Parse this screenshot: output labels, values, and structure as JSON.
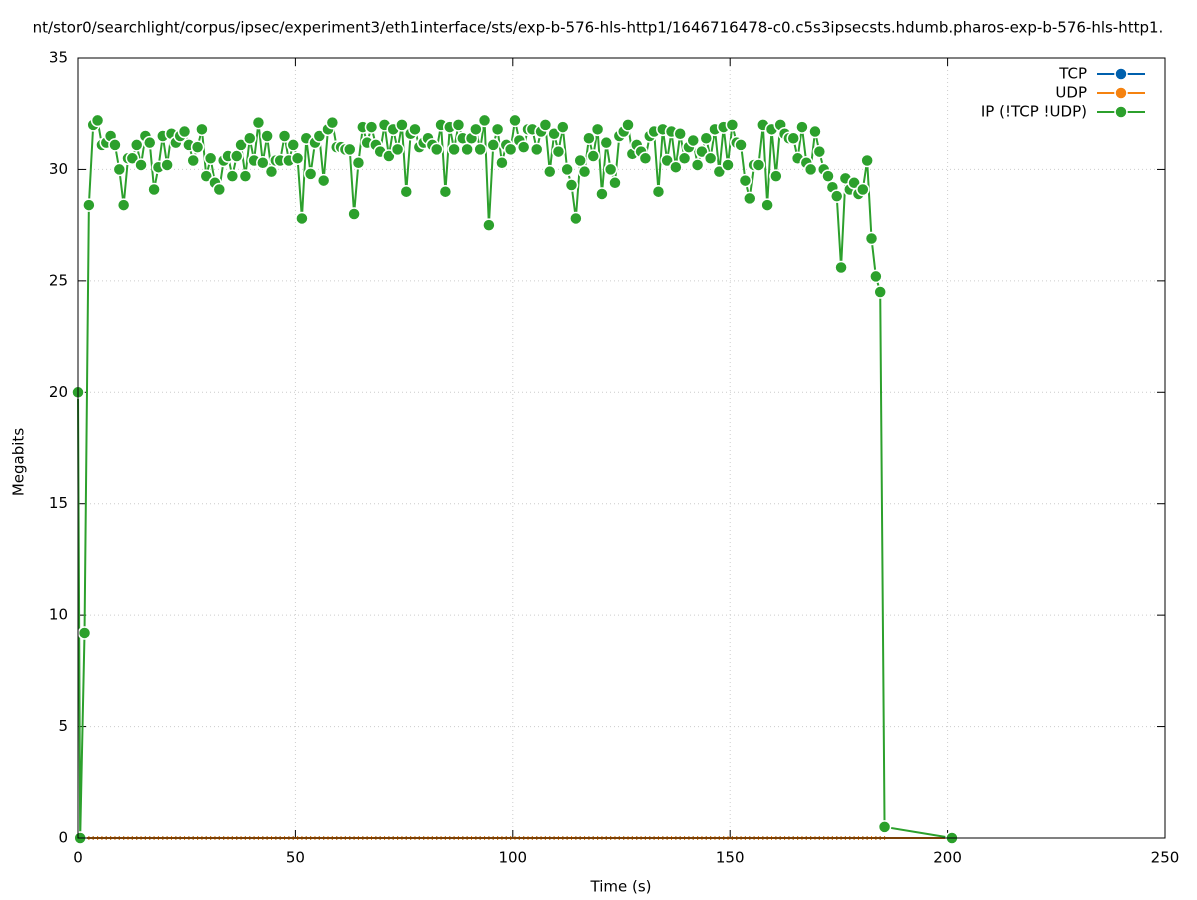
{
  "chart_data": {
    "type": "line",
    "title": "nt/stor0/searchlight/corpus/ipsec/experiment3/eth1interface/sts/exp-b-576-hls-http1/1646716478-c0.c5s3ipsecsts.hdumb.pharos-exp-b-576-hls-http1.",
    "x_label": "Time (s)",
    "y_label": "Megabits",
    "xlim": [
      0,
      250
    ],
    "xticks": [
      0,
      50,
      100,
      150,
      200,
      250
    ],
    "ylim": [
      0,
      35
    ],
    "yticks": [
      0,
      5,
      10,
      15,
      20,
      25,
      30,
      35
    ],
    "grid": true,
    "legend": "top-right",
    "x": [
      0,
      0.5,
      1.5,
      2.5,
      3.5,
      4.5,
      5.5,
      6.5,
      7.5,
      8.5,
      9.5,
      10.5,
      11.5,
      12.5,
      13.5,
      14.5,
      15.5,
      16.5,
      17.5,
      18.5,
      19.5,
      20.5,
      21.5,
      22.5,
      23.5,
      24.5,
      25.5,
      26.5,
      27.5,
      28.5,
      29.5,
      30.5,
      31.5,
      32.5,
      33.5,
      34.5,
      35.5,
      36.5,
      37.5,
      38.5,
      39.5,
      40.5,
      41.5,
      42.5,
      43.5,
      44.5,
      45.5,
      46.5,
      47.5,
      48.5,
      49.5,
      50.5,
      51.5,
      52.5,
      53.5,
      54.5,
      55.5,
      56.5,
      57.5,
      58.5,
      59.5,
      60.5,
      61.5,
      62.5,
      63.5,
      64.5,
      65.5,
      66.5,
      67.5,
      68.5,
      69.5,
      70.5,
      71.5,
      72.5,
      73.5,
      74.5,
      75.5,
      76.5,
      77.5,
      78.5,
      79.5,
      80.5,
      81.5,
      82.5,
      83.5,
      84.5,
      85.5,
      86.5,
      87.5,
      88.5,
      89.5,
      90.5,
      91.5,
      92.5,
      93.5,
      94.5,
      95.5,
      96.5,
      97.5,
      98.5,
      99.5,
      100.5,
      101.5,
      102.5,
      103.5,
      104.5,
      105.5,
      106.5,
      107.5,
      108.5,
      109.5,
      110.5,
      111.5,
      112.5,
      113.5,
      114.5,
      115.5,
      116.5,
      117.5,
      118.5,
      119.5,
      120.5,
      121.5,
      122.5,
      123.5,
      124.5,
      125.5,
      126.5,
      127.5,
      128.5,
      129.5,
      130.5,
      131.5,
      132.5,
      133.5,
      134.5,
      135.5,
      136.5,
      137.5,
      138.5,
      139.5,
      140.5,
      141.5,
      142.5,
      143.5,
      144.5,
      145.5,
      146.5,
      147.5,
      148.5,
      149.5,
      150.5,
      151.5,
      152.5,
      153.5,
      154.5,
      155.5,
      156.5,
      157.5,
      158.5,
      159.5,
      160.5,
      161.5,
      162.5,
      163.5,
      164.5,
      165.5,
      166.5,
      167.5,
      168.5,
      169.5,
      170.5,
      171.5,
      172.5,
      173.5,
      174.5,
      175.5,
      176.5,
      177.5,
      178.5,
      179.5,
      180.5,
      181.5,
      182.5,
      183.5,
      184.5,
      185.5,
      201
    ],
    "series": [
      {
        "name": "TCP",
        "color": "#0060ad",
        "values": [
          0,
          0,
          0,
          0,
          0,
          0,
          0,
          0,
          0,
          0,
          0,
          0,
          0,
          0,
          0,
          0,
          0,
          0,
          0,
          0,
          0,
          0,
          0,
          0,
          0,
          0,
          0,
          0,
          0,
          0,
          0,
          0,
          0,
          0,
          0,
          0,
          0,
          0,
          0,
          0,
          0,
          0,
          0,
          0,
          0,
          0,
          0,
          0,
          0,
          0,
          0,
          0,
          0,
          0,
          0,
          0,
          0,
          0,
          0,
          0,
          0,
          0,
          0,
          0,
          0,
          0,
          0,
          0,
          0,
          0,
          0,
          0,
          0,
          0,
          0,
          0,
          0,
          0,
          0,
          0,
          0,
          0,
          0,
          0,
          0,
          0,
          0,
          0,
          0,
          0,
          0,
          0,
          0,
          0,
          0,
          0,
          0,
          0,
          0,
          0,
          0,
          0,
          0,
          0,
          0,
          0,
          0,
          0,
          0,
          0,
          0,
          0,
          0,
          0,
          0,
          0,
          0,
          0,
          0,
          0,
          0,
          0,
          0,
          0,
          0,
          0,
          0,
          0,
          0,
          0,
          0,
          0,
          0,
          0,
          0,
          0,
          0,
          0,
          0,
          0,
          0,
          0,
          0,
          0,
          0,
          0,
          0,
          0,
          0,
          0,
          0,
          0,
          0,
          0,
          0,
          0,
          0,
          0,
          0,
          0,
          0,
          0,
          0,
          0,
          0,
          0,
          0,
          0,
          0,
          0,
          0,
          0,
          0,
          0,
          0,
          0,
          0,
          0,
          0,
          0,
          0,
          0,
          0,
          0,
          0,
          0,
          0,
          0
        ]
      },
      {
        "name": "UDP",
        "color": "#f5820f",
        "values": [
          0,
          0,
          0,
          0,
          0,
          0,
          0,
          0,
          0,
          0,
          0,
          0,
          0,
          0,
          0,
          0,
          0,
          0,
          0,
          0,
          0,
          0,
          0,
          0,
          0,
          0,
          0,
          0,
          0,
          0,
          0,
          0,
          0,
          0,
          0,
          0,
          0,
          0,
          0,
          0,
          0,
          0,
          0,
          0,
          0,
          0,
          0,
          0,
          0,
          0,
          0,
          0,
          0,
          0,
          0,
          0,
          0,
          0,
          0,
          0,
          0,
          0,
          0,
          0,
          0,
          0,
          0,
          0,
          0,
          0,
          0,
          0,
          0,
          0,
          0,
          0,
          0,
          0,
          0,
          0,
          0,
          0,
          0,
          0,
          0,
          0,
          0,
          0,
          0,
          0,
          0,
          0,
          0,
          0,
          0,
          0,
          0,
          0,
          0,
          0,
          0,
          0,
          0,
          0,
          0,
          0,
          0,
          0,
          0,
          0,
          0,
          0,
          0,
          0,
          0,
          0,
          0,
          0,
          0,
          0,
          0,
          0,
          0,
          0,
          0,
          0,
          0,
          0,
          0,
          0,
          0,
          0,
          0,
          0,
          0,
          0,
          0,
          0,
          0,
          0,
          0,
          0,
          0,
          0,
          0,
          0,
          0,
          0,
          0,
          0,
          0,
          0,
          0,
          0,
          0,
          0,
          0,
          0,
          0,
          0,
          0,
          0,
          0,
          0,
          0,
          0,
          0,
          0,
          0,
          0,
          0,
          0,
          0,
          0,
          0,
          0,
          0,
          0,
          0,
          0,
          0,
          0,
          0,
          0,
          0,
          0,
          0,
          0
        ]
      },
      {
        "name": "IP (!TCP  !UDP)",
        "color": "#2ca02c",
        "values": [
          20,
          0,
          9.2,
          28.4,
          32,
          32.2,
          31.1,
          31.2,
          31.5,
          31.1,
          30,
          28.4,
          30.5,
          30.5,
          31.1,
          30.2,
          31.5,
          31.2,
          29.1,
          30.1,
          31.5,
          30.2,
          31.6,
          31.2,
          31.5,
          31.7,
          31.1,
          30.4,
          31,
          31.8,
          29.7,
          30.5,
          29.4,
          29.1,
          30.4,
          30.6,
          29.7,
          30.6,
          31.1,
          29.7,
          31.4,
          30.4,
          32.1,
          30.3,
          31.5,
          29.9,
          30.4,
          30.4,
          31.5,
          30.4,
          31.1,
          30.5,
          27.8,
          31.4,
          29.8,
          31.2,
          31.5,
          29.5,
          31.8,
          32.1,
          31,
          31,
          30.9,
          30.9,
          28,
          30.3,
          31.9,
          31.2,
          31.9,
          31.1,
          30.8,
          32,
          30.6,
          31.8,
          30.9,
          32,
          29,
          31.6,
          31.8,
          31,
          31.2,
          31.4,
          31.1,
          30.9,
          32,
          29,
          31.9,
          30.9,
          32,
          31.4,
          30.9,
          31.4,
          31.8,
          30.9,
          32.2,
          27.5,
          31.1,
          31.8,
          30.3,
          31.1,
          30.9,
          32.2,
          31.3,
          31,
          31.8,
          31.8,
          30.9,
          31.7,
          32,
          29.9,
          31.6,
          30.8,
          31.9,
          30,
          29.3,
          27.8,
          30.4,
          29.9,
          31.4,
          30.6,
          31.8,
          28.9,
          31.2,
          30,
          29.4,
          31.5,
          31.7,
          32,
          30.7,
          31.1,
          30.8,
          30.5,
          31.5,
          31.7,
          29,
          31.8,
          30.4,
          31.7,
          30.1,
          31.6,
          30.5,
          31,
          31.3,
          30.2,
          30.8,
          31.4,
          30.5,
          31.8,
          29.9,
          31.9,
          30.2,
          32,
          31.2,
          31.1,
          29.5,
          28.7,
          30.2,
          30.2,
          32,
          28.4,
          31.8,
          29.7,
          32,
          31.6,
          31.4,
          31.4,
          30.5,
          31.9,
          30.3,
          30,
          31.7,
          30.8,
          30,
          29.7,
          29.2,
          28.8,
          25.6,
          29.6,
          29.1,
          29.4,
          28.9,
          29.1,
          30.4,
          26.9,
          25.2,
          24.5,
          0.5,
          0
        ]
      }
    ]
  }
}
